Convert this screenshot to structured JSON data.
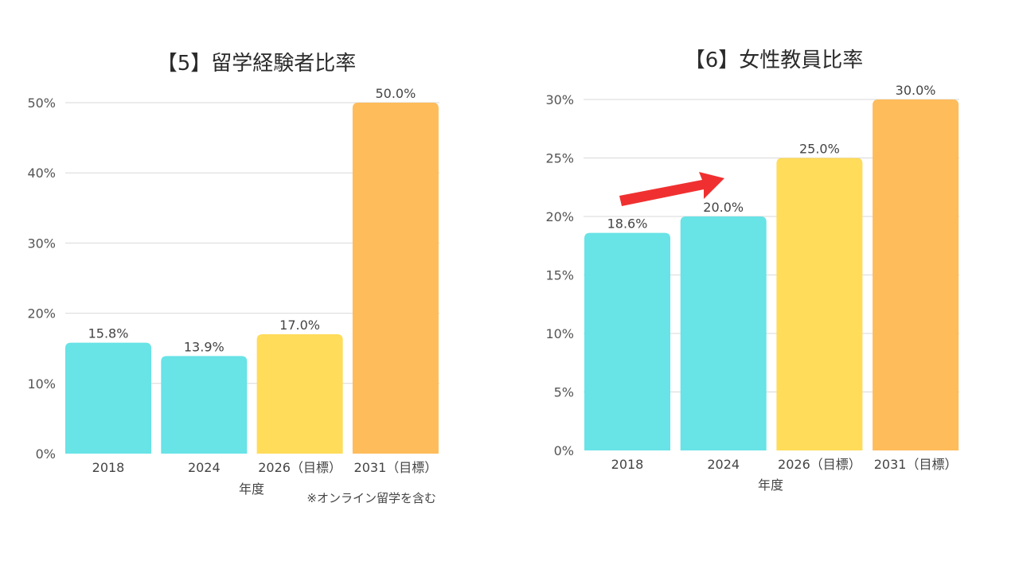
{
  "chart_data": [
    {
      "type": "bar",
      "title": "【5】留学経験者比率",
      "xlabel": "年度",
      "ylabel": "",
      "categories": [
        "2018",
        "2024",
        "2026（目標）",
        "2031（目標）"
      ],
      "values": [
        15.8,
        13.9,
        17.0,
        50.0
      ],
      "value_labels": [
        "15.8%",
        "13.9%",
        "17.0%",
        "50.0%"
      ],
      "bar_colors": [
        "#68e3e6",
        "#68e3e6",
        "#ffdc5a",
        "#ffbc5a"
      ],
      "ylim": [
        0,
        50
      ],
      "yticks": [
        0,
        10,
        20,
        30,
        40,
        50
      ],
      "ytick_labels": [
        "0%",
        "10%",
        "20%",
        "30%",
        "40%",
        "50%"
      ],
      "grid": true,
      "note": "※オンライン留学を含む"
    },
    {
      "type": "bar",
      "title": "【6】女性教員比率",
      "xlabel": "年度",
      "ylabel": "",
      "categories": [
        "2018",
        "2024",
        "2026（目標）",
        "2031（目標）"
      ],
      "values": [
        18.6,
        20.0,
        25.0,
        30.0
      ],
      "value_labels": [
        "18.6%",
        "20.0%",
        "25.0%",
        "30.0%"
      ],
      "bar_colors": [
        "#68e3e6",
        "#68e3e6",
        "#ffdc5a",
        "#ffbc5a"
      ],
      "ylim": [
        0,
        30
      ],
      "yticks": [
        0,
        5,
        10,
        15,
        20,
        25,
        30
      ],
      "ytick_labels": [
        "0%",
        "5%",
        "10%",
        "15%",
        "20%",
        "25%",
        "30%"
      ],
      "grid": true,
      "annotation": {
        "type": "arrow",
        "color": "#f03030"
      }
    }
  ]
}
